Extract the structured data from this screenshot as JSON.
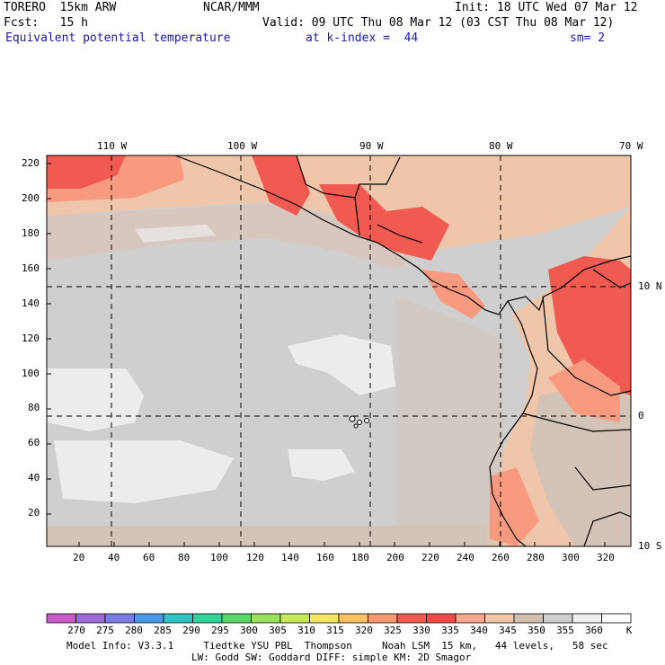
{
  "header": {
    "model": "TORERO  15km ARW",
    "center": "NCAR/MMM",
    "init": "Init: 18 UTC Wed 07 Mar 12",
    "fcst": "Fcst:   15 h",
    "valid": "Valid: 09 UTC Thu 08 Mar 12 (03 CST Thu 08 Mar 12)",
    "field": "Equivalent potential temperature",
    "level": "at k-index =  44",
    "smooth": "sm= 2"
  },
  "map": {
    "top_lon_labels": [
      "110 W",
      "100 W",
      "90 W",
      "80 W",
      "70 W"
    ],
    "right_lat_labels": [
      "10 N",
      "0",
      "10 S"
    ],
    "y_ticks": [
      "220",
      "200",
      "180",
      "160",
      "140",
      "120",
      "100",
      "80",
      "60",
      "40",
      "20"
    ],
    "x_ticks": [
      "20",
      "40",
      "60",
      "80",
      "100",
      "120",
      "140",
      "160",
      "180",
      "200",
      "220",
      "240",
      "260",
      "280",
      "300",
      "320"
    ]
  },
  "colorbar": {
    "unit": "K",
    "levels": [
      "270",
      "275",
      "280",
      "285",
      "290",
      "295",
      "300",
      "305",
      "310",
      "315",
      "320",
      "325",
      "330",
      "335",
      "340",
      "345",
      "350",
      "355",
      "360"
    ],
    "colors": [
      "#c85ac8",
      "#9a6ad8",
      "#7a7ae8",
      "#4a9ae8",
      "#2ec4c4",
      "#2ed49a",
      "#5ad86a",
      "#9ae05a",
      "#c8e85a",
      "#f0e860",
      "#f8c060",
      "#f89870",
      "#f05a50",
      "#f04a4a",
      "#f8a890",
      "#f0c8a8",
      "#d0bfb0",
      "#d0d0d0",
      "#f0f0f0",
      "#ffffff"
    ]
  },
  "footer": {
    "line1": "Model Info: V3.3.1     Tiedtke YSU PBL  Thompson     Noah LSM  15 km,   44 levels,   58 sec",
    "line2": "LW: Godd SW: Goddard DIFF: simple KM: 2D Smagor"
  }
}
